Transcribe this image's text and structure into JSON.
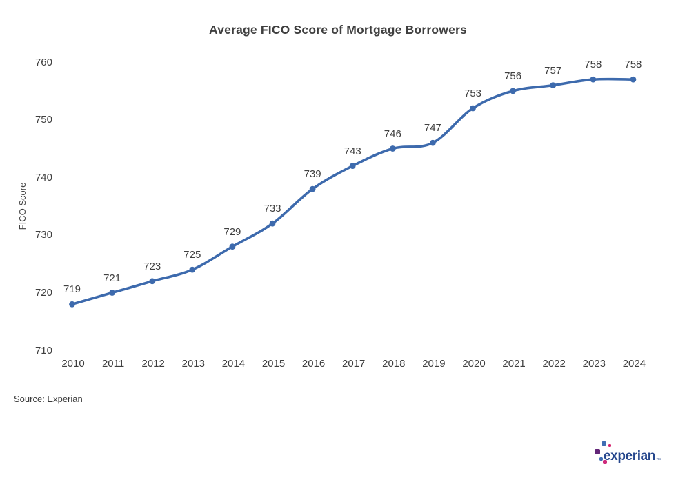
{
  "chart_data": {
    "type": "line",
    "title": "Average FICO Score of Mortgage Borrowers",
    "xlabel": "",
    "ylabel": "FICO Score",
    "x": [
      2010,
      2011,
      2012,
      2013,
      2014,
      2015,
      2016,
      2017,
      2018,
      2019,
      2020,
      2021,
      2022,
      2023,
      2024
    ],
    "values": [
      719,
      721,
      723,
      725,
      729,
      733,
      739,
      743,
      746,
      747,
      753,
      756,
      757,
      758,
      758
    ],
    "point_labels": [
      "719",
      "721",
      "723",
      "725",
      "729",
      "733",
      "739",
      "743",
      "746",
      "747",
      "753",
      "756",
      "757",
      "758",
      "758"
    ],
    "yticks": [
      760,
      750,
      740,
      730,
      720,
      710
    ],
    "ylim": [
      710,
      760
    ],
    "grid": false,
    "legend": false,
    "line_color": "#3d6aad",
    "marker_color": "#3d6aad",
    "label_color": "#404040"
  },
  "source": {
    "label": "Source: Experian"
  },
  "logo": {
    "text": "experian",
    "tm": "™",
    "text_color": "#26478d",
    "mark_colors": {
      "blue": "#406eb3",
      "purple": "#632678",
      "magenta": "#cf2a7c",
      "pink": "#d6246e"
    }
  }
}
